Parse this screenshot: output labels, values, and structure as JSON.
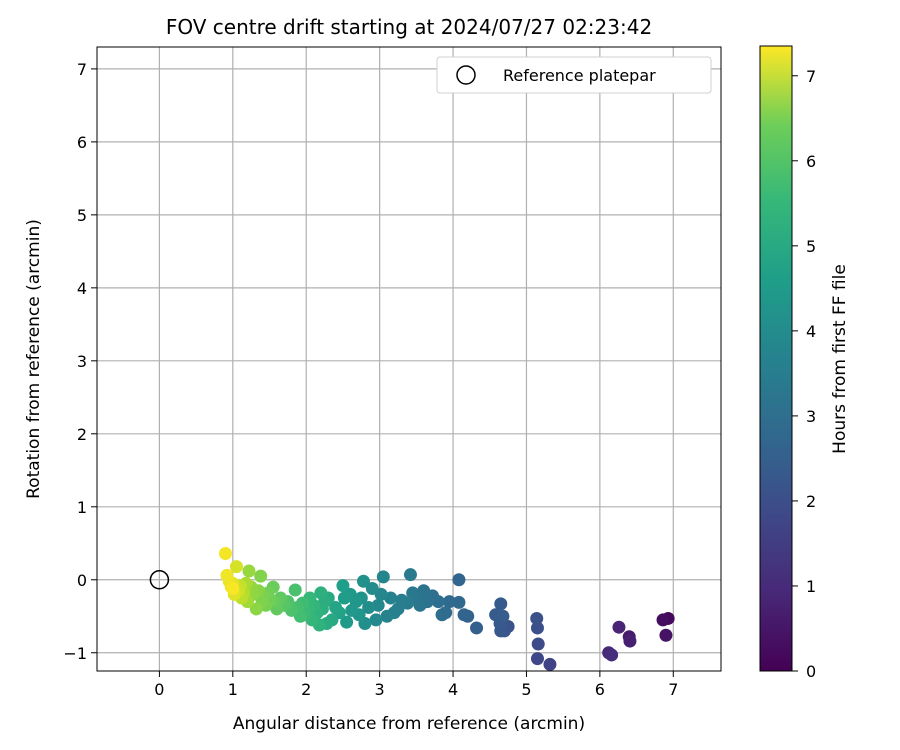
{
  "chart_data": {
    "type": "scatter",
    "title": "FOV centre drift starting at 2024/07/27 02:23:42",
    "xlabel": "Angular distance from reference (arcmin)",
    "ylabel": "Rotation from reference (arcmin)",
    "xlim": [
      -0.85,
      7.65
    ],
    "ylim": [
      -1.25,
      7.3
    ],
    "xticks": [
      "0",
      "1",
      "2",
      "3",
      "4",
      "5",
      "6",
      "7"
    ],
    "yticks": [
      "−1",
      "0",
      "1",
      "2",
      "3",
      "4",
      "5",
      "6",
      "7"
    ],
    "grid": true,
    "legend": {
      "position": "top-right",
      "entries": [
        "Reference platepar"
      ]
    },
    "colorbar": {
      "label": "Hours from first FF file",
      "range": [
        0,
        7.35
      ],
      "ticks": [
        "0",
        "1",
        "2",
        "3",
        "4",
        "5",
        "6",
        "7"
      ],
      "colormap": "viridis"
    },
    "reference_point": {
      "x": 0,
      "y": 0
    },
    "points": [
      {
        "x": 6.93,
        "y": -0.53,
        "t": 0.15
      },
      {
        "x": 6.86,
        "y": -0.55,
        "t": 0.25
      },
      {
        "x": 6.9,
        "y": -0.76,
        "t": 0.35
      },
      {
        "x": 6.4,
        "y": -0.78,
        "t": 0.55
      },
      {
        "x": 6.41,
        "y": -0.84,
        "t": 0.65
      },
      {
        "x": 6.26,
        "y": -0.65,
        "t": 0.75
      },
      {
        "x": 6.12,
        "y": -1.0,
        "t": 0.85
      },
      {
        "x": 6.16,
        "y": -1.03,
        "t": 0.95
      },
      {
        "x": 5.32,
        "y": -1.16,
        "t": 1.5
      },
      {
        "x": 5.15,
        "y": -1.08,
        "t": 1.6
      },
      {
        "x": 5.16,
        "y": -0.88,
        "t": 1.7
      },
      {
        "x": 5.15,
        "y": -0.66,
        "t": 1.8
      },
      {
        "x": 5.14,
        "y": -0.53,
        "t": 1.85
      },
      {
        "x": 4.75,
        "y": -0.64,
        "t": 1.9
      },
      {
        "x": 4.7,
        "y": -0.7,
        "t": 1.95
      },
      {
        "x": 4.65,
        "y": -0.7,
        "t": 2.0
      },
      {
        "x": 4.64,
        "y": -0.6,
        "t": 2.05
      },
      {
        "x": 4.65,
        "y": -0.33,
        "t": 2.08
      },
      {
        "x": 4.58,
        "y": -0.48,
        "t": 2.1
      },
      {
        "x": 4.68,
        "y": -0.5,
        "t": 2.15
      },
      {
        "x": 4.32,
        "y": -0.66,
        "t": 2.2
      },
      {
        "x": 4.2,
        "y": -0.5,
        "t": 2.3
      },
      {
        "x": 4.15,
        "y": -0.48,
        "t": 2.35
      },
      {
        "x": 4.08,
        "y": 0.0,
        "t": 2.4
      },
      {
        "x": 4.08,
        "y": -0.31,
        "t": 2.45
      },
      {
        "x": 3.95,
        "y": -0.3,
        "t": 2.5
      },
      {
        "x": 3.9,
        "y": -0.45,
        "t": 2.55
      },
      {
        "x": 3.85,
        "y": -0.48,
        "t": 2.6
      },
      {
        "x": 3.8,
        "y": -0.3,
        "t": 2.65
      },
      {
        "x": 3.72,
        "y": -0.22,
        "t": 2.7
      },
      {
        "x": 3.65,
        "y": -0.3,
        "t": 2.75
      },
      {
        "x": 3.6,
        "y": -0.15,
        "t": 2.8
      },
      {
        "x": 3.55,
        "y": -0.35,
        "t": 2.85
      },
      {
        "x": 3.5,
        "y": -0.25,
        "t": 2.9
      },
      {
        "x": 3.45,
        "y": -0.18,
        "t": 2.95
      },
      {
        "x": 3.42,
        "y": 0.07,
        "t": 3.0
      },
      {
        "x": 3.38,
        "y": -0.32,
        "t": 3.05
      },
      {
        "x": 3.3,
        "y": -0.28,
        "t": 3.1
      },
      {
        "x": 3.25,
        "y": -0.4,
        "t": 3.15
      },
      {
        "x": 3.2,
        "y": -0.45,
        "t": 3.2
      },
      {
        "x": 3.15,
        "y": -0.25,
        "t": 3.25
      },
      {
        "x": 3.1,
        "y": -0.5,
        "t": 3.3
      },
      {
        "x": 3.05,
        "y": 0.04,
        "t": 3.35
      },
      {
        "x": 3.02,
        "y": -0.2,
        "t": 3.4
      },
      {
        "x": 2.98,
        "y": -0.35,
        "t": 3.45
      },
      {
        "x": 2.95,
        "y": -0.55,
        "t": 3.5
      },
      {
        "x": 2.9,
        "y": -0.12,
        "t": 3.55
      },
      {
        "x": 2.85,
        "y": -0.38,
        "t": 3.6
      },
      {
        "x": 2.8,
        "y": -0.6,
        "t": 3.65
      },
      {
        "x": 2.78,
        "y": -0.02,
        "t": 3.7
      },
      {
        "x": 2.75,
        "y": -0.25,
        "t": 3.75
      },
      {
        "x": 2.72,
        "y": -0.48,
        "t": 3.8
      },
      {
        "x": 2.68,
        "y": -0.3,
        "t": 3.85
      },
      {
        "x": 2.62,
        "y": -0.42,
        "t": 3.9
      },
      {
        "x": 2.6,
        "y": -0.2,
        "t": 3.95
      },
      {
        "x": 2.55,
        "y": -0.58,
        "t": 4.0
      },
      {
        "x": 2.52,
        "y": -0.25,
        "t": 4.05
      },
      {
        "x": 2.5,
        "y": -0.08,
        "t": 4.1
      },
      {
        "x": 2.45,
        "y": -0.45,
        "t": 4.2
      },
      {
        "x": 2.4,
        "y": -0.38,
        "t": 4.3
      },
      {
        "x": 2.35,
        "y": -0.55,
        "t": 4.4
      },
      {
        "x": 2.3,
        "y": -0.25,
        "t": 4.45
      },
      {
        "x": 2.28,
        "y": -0.6,
        "t": 4.5
      },
      {
        "x": 2.25,
        "y": -0.3,
        "t": 4.55
      },
      {
        "x": 2.22,
        "y": -0.4,
        "t": 4.6
      },
      {
        "x": 2.2,
        "y": -0.18,
        "t": 4.65
      },
      {
        "x": 2.18,
        "y": -0.62,
        "t": 4.7
      },
      {
        "x": 2.15,
        "y": -0.45,
        "t": 4.75
      },
      {
        "x": 2.1,
        "y": -0.35,
        "t": 4.8
      },
      {
        "x": 2.08,
        "y": -0.55,
        "t": 4.85
      },
      {
        "x": 2.05,
        "y": -0.25,
        "t": 4.9
      },
      {
        "x": 2.02,
        "y": -0.4,
        "t": 4.95
      },
      {
        "x": 1.98,
        "y": -0.48,
        "t": 5.0
      },
      {
        "x": 1.95,
        "y": -0.32,
        "t": 5.05
      },
      {
        "x": 1.92,
        "y": -0.5,
        "t": 5.1
      },
      {
        "x": 1.88,
        "y": -0.38,
        "t": 5.15
      },
      {
        "x": 1.85,
        "y": -0.14,
        "t": 5.2
      },
      {
        "x": 1.8,
        "y": -0.42,
        "t": 5.25
      },
      {
        "x": 1.75,
        "y": -0.3,
        "t": 5.3
      },
      {
        "x": 1.7,
        "y": -0.35,
        "t": 5.4
      },
      {
        "x": 1.65,
        "y": -0.25,
        "t": 5.5
      },
      {
        "x": 1.6,
        "y": -0.4,
        "t": 5.55
      },
      {
        "x": 1.58,
        "y": -0.3,
        "t": 5.6
      },
      {
        "x": 1.55,
        "y": -0.1,
        "t": 5.65
      },
      {
        "x": 1.52,
        "y": -0.28,
        "t": 5.7
      },
      {
        "x": 1.48,
        "y": -0.18,
        "t": 5.75
      },
      {
        "x": 1.45,
        "y": -0.35,
        "t": 5.8
      },
      {
        "x": 1.42,
        "y": -0.22,
        "t": 5.85
      },
      {
        "x": 1.4,
        "y": -0.3,
        "t": 5.9
      },
      {
        "x": 1.38,
        "y": 0.05,
        "t": 5.95
      },
      {
        "x": 1.35,
        "y": -0.15,
        "t": 6.0
      },
      {
        "x": 1.32,
        "y": -0.4,
        "t": 6.05
      },
      {
        "x": 1.28,
        "y": -0.2,
        "t": 6.1
      },
      {
        "x": 1.25,
        "y": -0.1,
        "t": 6.15
      },
      {
        "x": 1.22,
        "y": 0.12,
        "t": 6.2
      },
      {
        "x": 1.2,
        "y": -0.3,
        "t": 6.3
      },
      {
        "x": 1.18,
        "y": -0.05,
        "t": 6.4
      },
      {
        "x": 1.15,
        "y": -0.18,
        "t": 6.5
      },
      {
        "x": 1.12,
        "y": -0.25,
        "t": 6.6
      },
      {
        "x": 1.1,
        "y": -0.08,
        "t": 6.7
      },
      {
        "x": 1.08,
        "y": -0.15,
        "t": 6.8
      },
      {
        "x": 1.05,
        "y": 0.18,
        "t": 6.9
      },
      {
        "x": 1.02,
        "y": -0.2,
        "t": 7.0
      },
      {
        "x": 1.0,
        "y": -0.05,
        "t": 7.05
      },
      {
        "x": 0.98,
        "y": -0.1,
        "t": 7.1
      },
      {
        "x": 0.95,
        "y": -0.02,
        "t": 7.15
      },
      {
        "x": 0.92,
        "y": 0.06,
        "t": 7.2
      },
      {
        "x": 0.9,
        "y": 0.36,
        "t": 7.25
      },
      {
        "x": 1.0,
        "y": -0.12,
        "t": 7.3
      }
    ]
  }
}
